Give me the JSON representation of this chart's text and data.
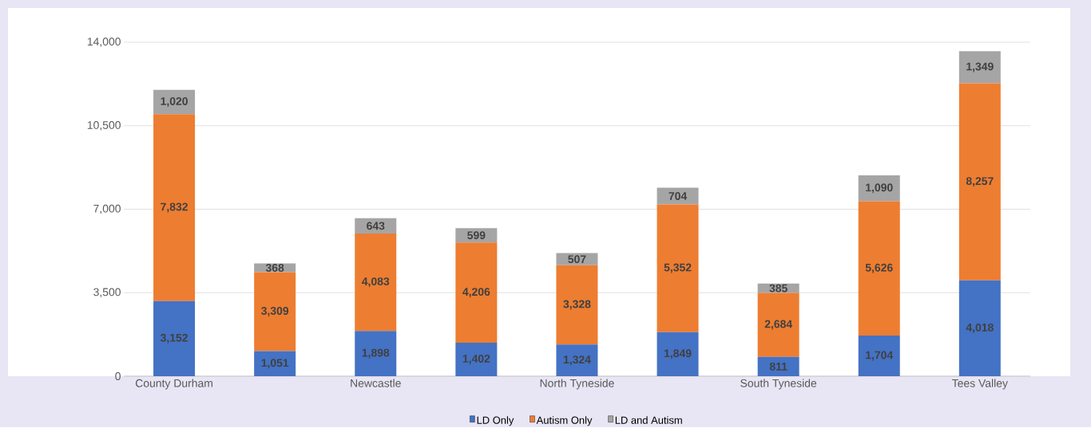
{
  "chart_data": {
    "type": "bar",
    "stacked": true,
    "categories": [
      "County Durham",
      null,
      "Newcastle",
      null,
      "North Tyneside",
      null,
      "South Tyneside",
      null,
      "Tees Valley"
    ],
    "series": [
      {
        "name": "LD Only",
        "color": "#4472c4",
        "values": [
          3152,
          1051,
          1898,
          1402,
          1324,
          1849,
          811,
          1704,
          4018
        ],
        "value_labels": [
          "3,152",
          "1,051",
          "1,898",
          "1,402",
          "1,324",
          "1,849",
          "811",
          "1,704",
          "4,018"
        ]
      },
      {
        "name": "Autism Only",
        "color": "#ed7d31",
        "values": [
          7832,
          3309,
          4083,
          4206,
          3328,
          5352,
          2684,
          5626,
          8257
        ],
        "value_labels": [
          "7,832",
          "3,309",
          "4,083",
          "4,206",
          "3,328",
          "5,352",
          "2,684",
          "5,626",
          "8,257"
        ]
      },
      {
        "name": "LD and Autism",
        "color": "#a5a5a5",
        "values": [
          1020,
          368,
          643,
          599,
          507,
          704,
          385,
          1090,
          1349
        ],
        "value_labels": [
          "1,020",
          "368",
          "643",
          "599",
          "507",
          "704",
          "385",
          "1,090",
          "1,349"
        ]
      }
    ],
    "ylim": [
      0,
      14000
    ],
    "yticks": [
      0,
      {
        "value": 3500,
        "label": "3,500"
      },
      {
        "value": 7000,
        "label": "7,000"
      },
      {
        "value": 10500,
        "label": "10,500"
      },
      {
        "value": 14000,
        "label": "14,000"
      }
    ],
    "grid": "y",
    "legend": "bottom"
  }
}
